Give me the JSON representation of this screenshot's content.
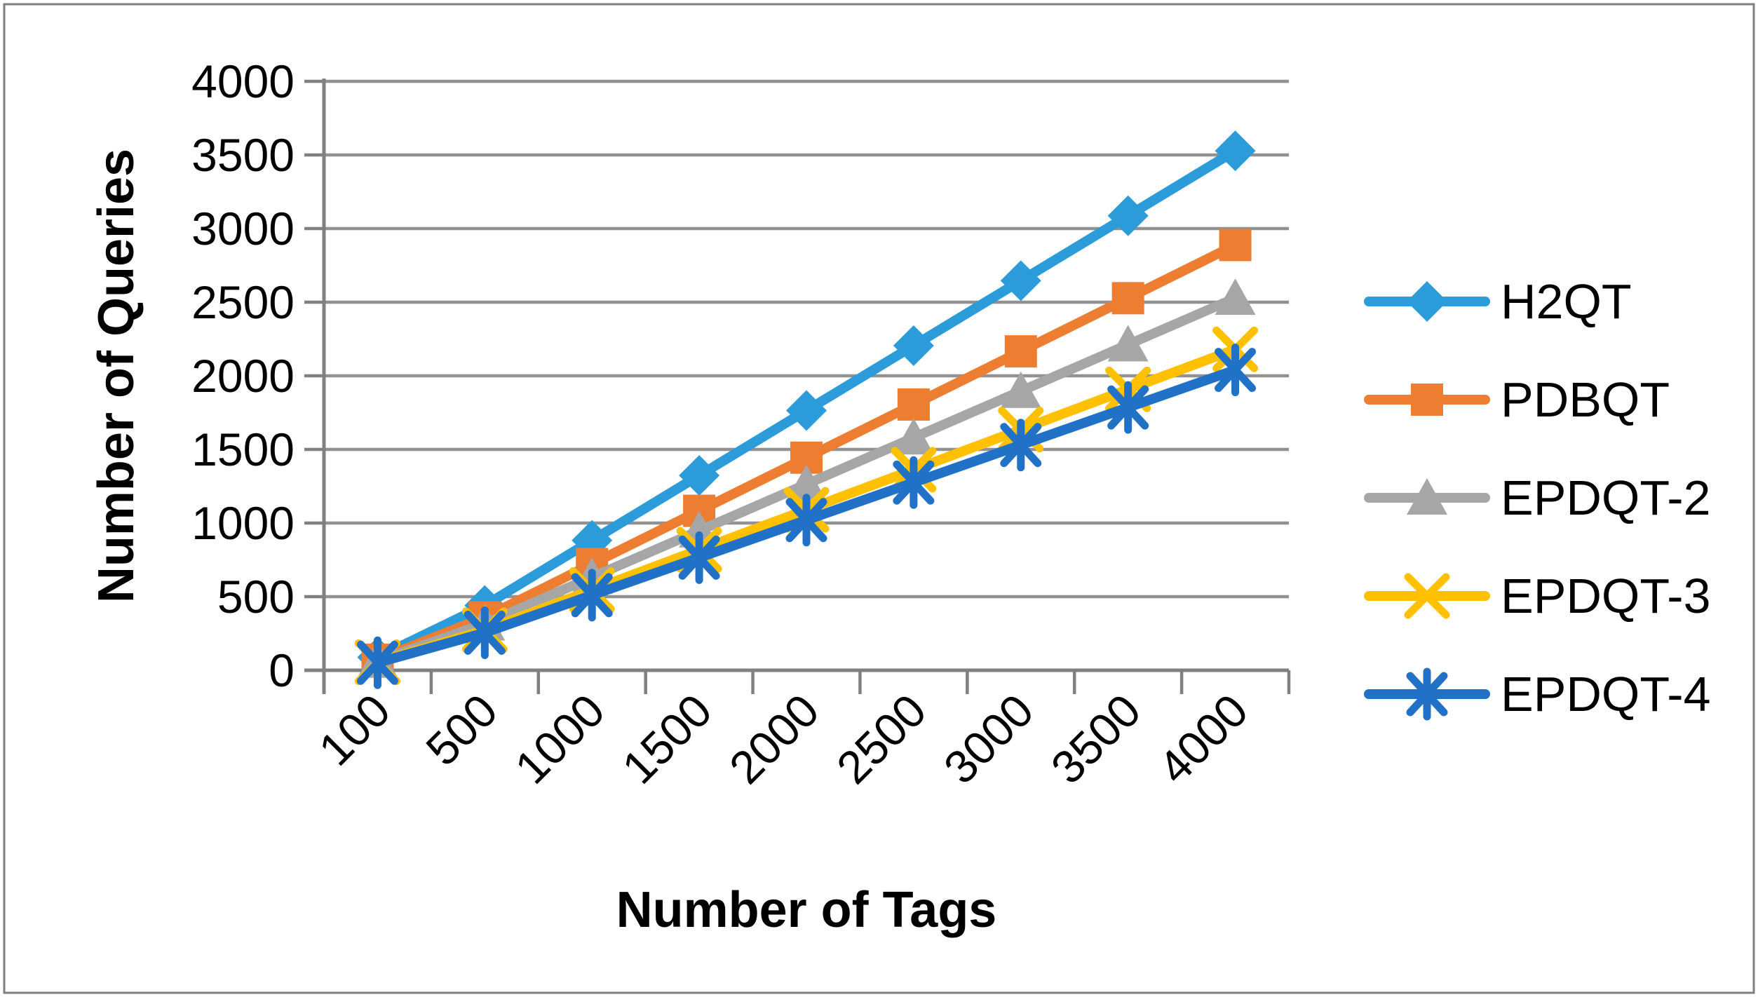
{
  "chart_data": {
    "type": "line",
    "title": "",
    "xlabel": "Number of Tags",
    "ylabel": "Number of Queries",
    "categories": [
      "100",
      "500",
      "1000",
      "1500",
      "2000",
      "2500",
      "3000",
      "3500",
      "4000"
    ],
    "y_ticks": [
      "0",
      "500",
      "1000",
      "1500",
      "2000",
      "2500",
      "3000",
      "3500",
      "4000"
    ],
    "ylim": [
      0,
      4000
    ],
    "grid": "horizontal",
    "legend_position": "right",
    "series": [
      {
        "name": "H2QT",
        "color": "#2B9CD9",
        "marker": "diamond",
        "values": [
          88,
          440,
          882,
          1323,
          1764,
          2205,
          2646,
          3087,
          3528
        ]
      },
      {
        "name": "PDBQT",
        "color": "#ED7D31",
        "marker": "square",
        "values": [
          72,
          360,
          722,
          1083,
          1444,
          1805,
          2166,
          2527,
          2888
        ]
      },
      {
        "name": "EPDQT-2",
        "color": "#A6A6A6",
        "marker": "triangle",
        "values": [
          63,
          316,
          632,
          948,
          1264,
          1580,
          1896,
          2212,
          2528
        ]
      },
      {
        "name": "EPDQT-3",
        "color": "#FFC000",
        "marker": "x",
        "values": [
          55,
          272,
          545,
          818,
          1090,
          1362,
          1635,
          1908,
          2180
        ]
      },
      {
        "name": "EPDQT-4",
        "color": "#2171C7",
        "marker": "asterisk",
        "values": [
          51,
          255,
          510,
          765,
          1020,
          1275,
          1530,
          1785,
          2040
        ]
      }
    ],
    "colors": {
      "gridline": "#919191",
      "axis": "#808080",
      "border": "#7F7F7F",
      "text": "#000000",
      "background": "#FFFFFF"
    }
  }
}
